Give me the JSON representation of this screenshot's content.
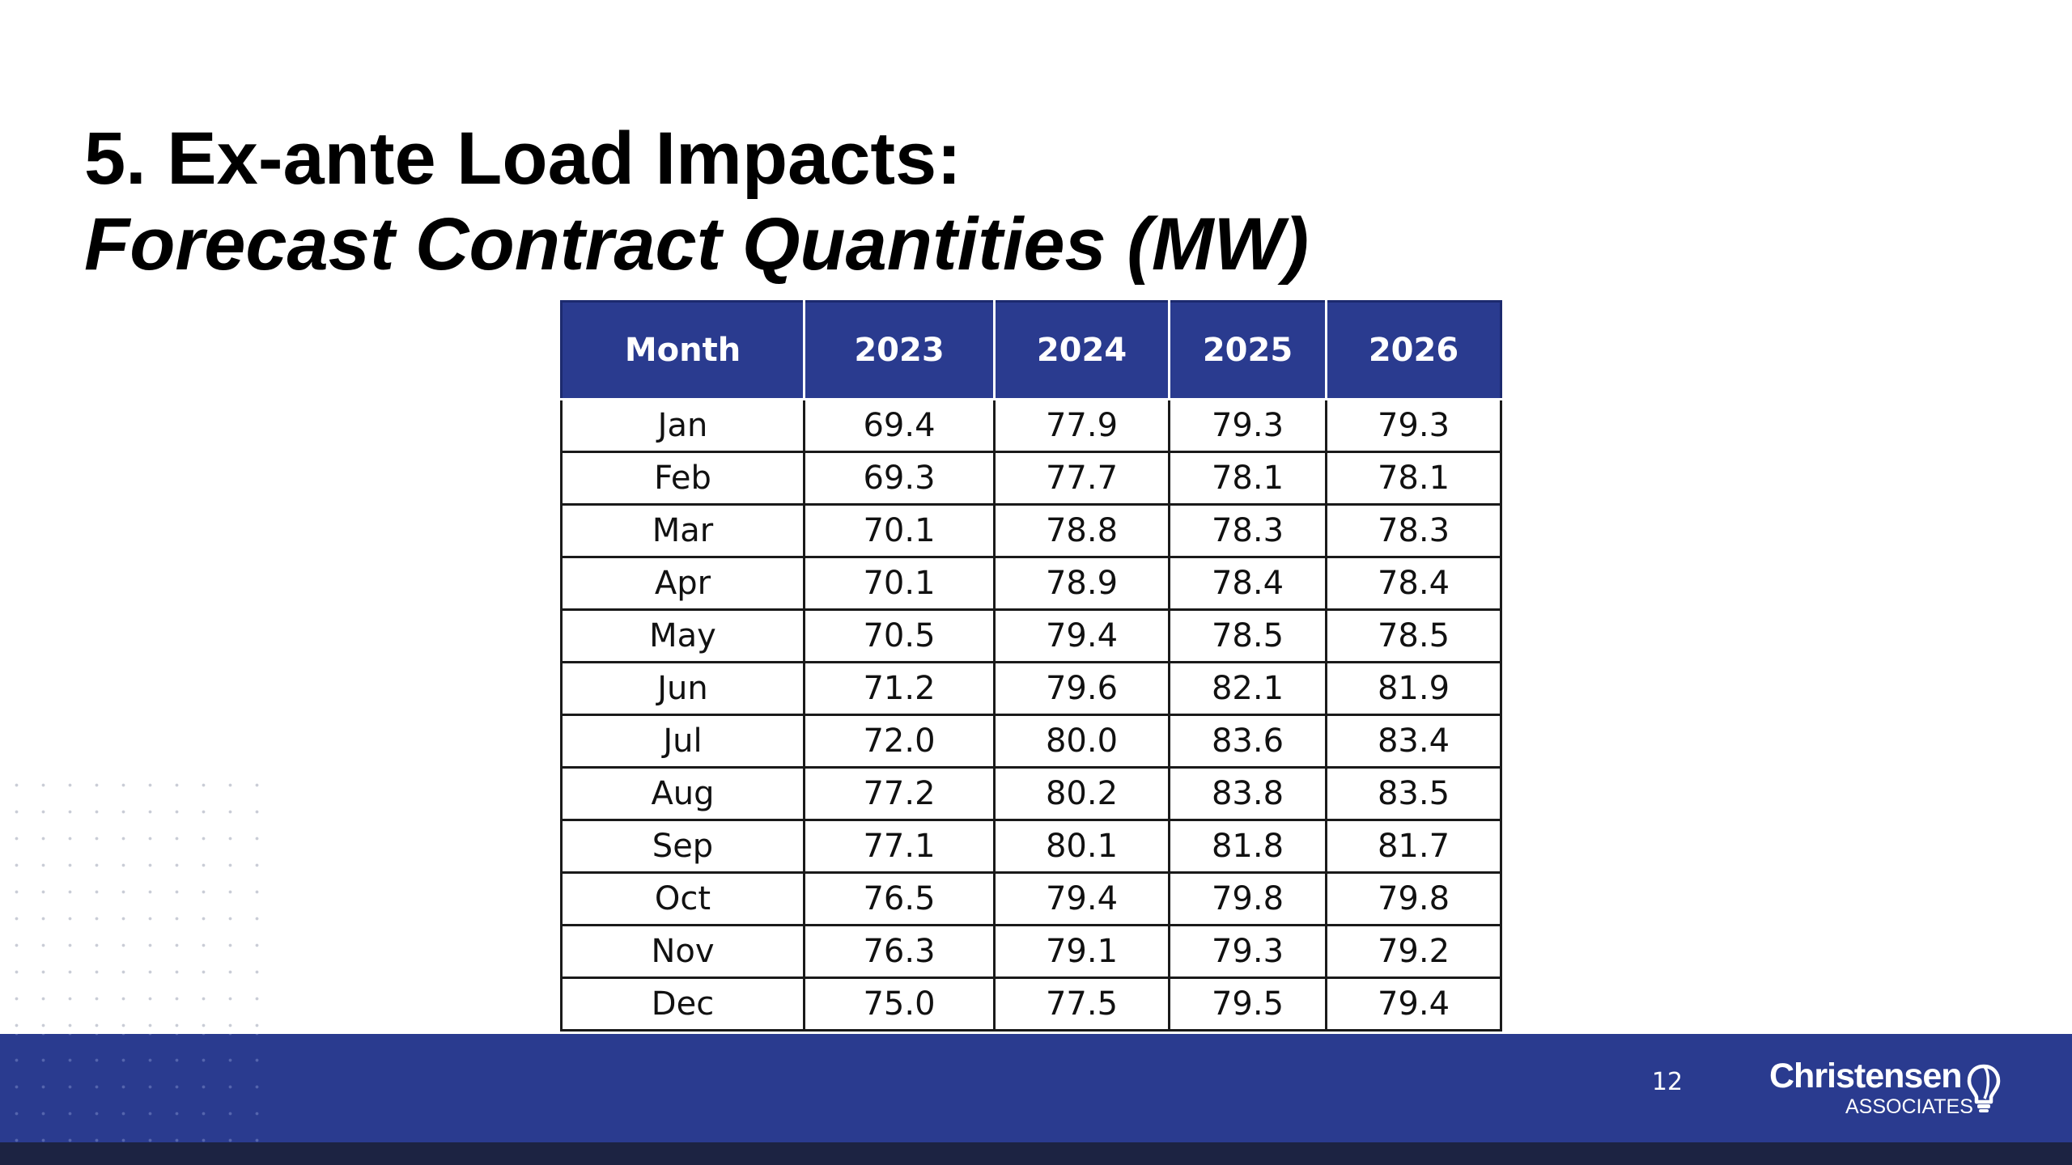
{
  "title": {
    "line1": "5. Ex-ante Load Impacts:",
    "line2": "Forecast Contract Quantities (MW)"
  },
  "table": {
    "headers": [
      "Month",
      "2023",
      "2024",
      "2025",
      "2026"
    ],
    "rows": [
      [
        "Jan",
        "69.4",
        "77.9",
        "79.3",
        "79.3"
      ],
      [
        "Feb",
        "69.3",
        "77.7",
        "78.1",
        "78.1"
      ],
      [
        "Mar",
        "70.1",
        "78.8",
        "78.3",
        "78.3"
      ],
      [
        "Apr",
        "70.1",
        "78.9",
        "78.4",
        "78.4"
      ],
      [
        "May",
        "70.5",
        "79.4",
        "78.5",
        "78.5"
      ],
      [
        "Jun",
        "71.2",
        "79.6",
        "82.1",
        "81.9"
      ],
      [
        "Jul",
        "72.0",
        "80.0",
        "83.6",
        "83.4"
      ],
      [
        "Aug",
        "77.2",
        "80.2",
        "83.8",
        "83.5"
      ],
      [
        "Sep",
        "77.1",
        "80.1",
        "81.8",
        "81.7"
      ],
      [
        "Oct",
        "76.5",
        "79.4",
        "79.8",
        "79.8"
      ],
      [
        "Nov",
        "76.3",
        "79.1",
        "79.3",
        "79.2"
      ],
      [
        "Dec",
        "75.0",
        "77.5",
        "79.5",
        "79.4"
      ]
    ]
  },
  "footer": {
    "page_number": "12",
    "logo_name": "Christensen",
    "logo_sub": "ASSOCIATES",
    "logo_icon": "lightbulb-icon"
  },
  "colors": {
    "header_bg": "#2a3b8f",
    "footer_bg": "#2a3b8f",
    "bottom_strip": "#1c2342"
  }
}
